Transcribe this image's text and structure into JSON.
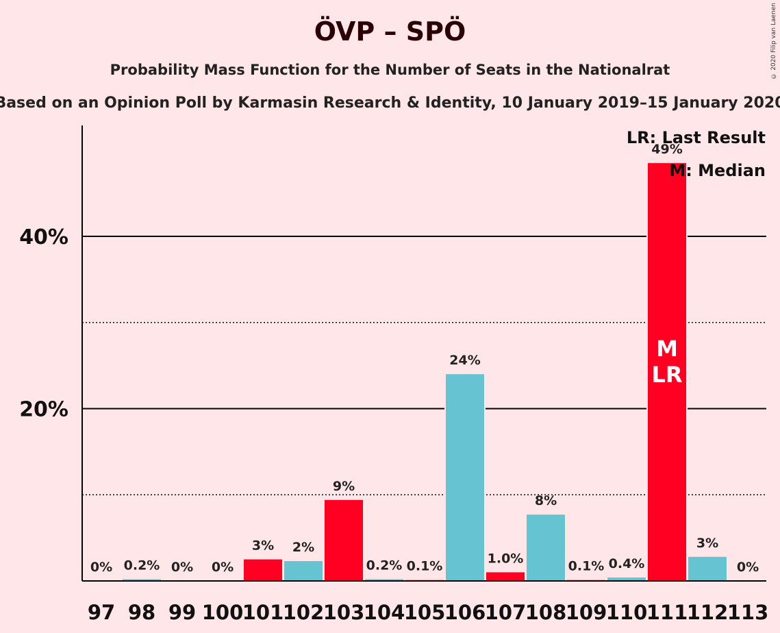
{
  "header": {
    "title": "ÖVP – SPÖ",
    "subtitle": "Probability Mass Function for the Number of Seats in the Nationalrat",
    "source": "Based on an Opinion Poll by Karmasin Research & Identity, 10 January 2019–15 January 2020",
    "copyright": "© 2020 Filip van Laenen"
  },
  "legend": {
    "last_result": "LR: Last Result",
    "median": "M: Median"
  },
  "colors": {
    "red": "#FF0022",
    "cyan": "#66C4D2",
    "background": "#FFE6E8"
  },
  "chart_data": {
    "type": "bar",
    "categories": [
      "97",
      "98",
      "99",
      "100",
      "101",
      "102",
      "103",
      "104",
      "105",
      "106",
      "107",
      "108",
      "109",
      "110",
      "111",
      "112",
      "113"
    ],
    "values": [
      0,
      0.2,
      0,
      0,
      2.5,
      2.3,
      9.4,
      0.2,
      0.1,
      24.0,
      1.0,
      7.7,
      0.1,
      0.4,
      48.5,
      2.8,
      0
    ],
    "labels": [
      "0%",
      "0.2%",
      "0%",
      "0%",
      "3%",
      "2%",
      "9%",
      "0.2%",
      "0.1%",
      "24%",
      "1.0%",
      "8%",
      "0.1%",
      "0.4%",
      "49%",
      "3%",
      "0%"
    ],
    "bar_colors": [
      "cyan",
      "cyan",
      "cyan",
      "red",
      "red",
      "cyan",
      "red",
      "cyan",
      "red",
      "cyan",
      "red",
      "cyan",
      "red",
      "cyan",
      "red",
      "cyan",
      "red"
    ],
    "yticks": [
      {
        "value": 20,
        "label": "20%"
      },
      {
        "value": 40,
        "label": "40%"
      }
    ],
    "minor_gridlines": [
      10,
      30
    ],
    "ylim": [
      0,
      52.5
    ],
    "median_category": "111",
    "last_result_category": "111",
    "median_mark": "M",
    "last_result_mark": "LR",
    "legend_position": "top-right"
  }
}
